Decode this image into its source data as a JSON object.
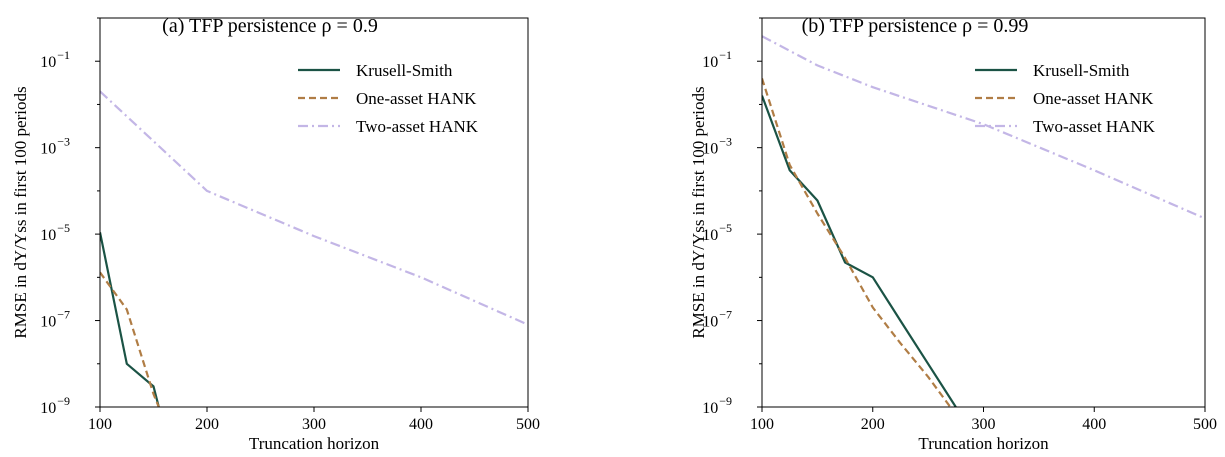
{
  "chart_data": [
    {
      "type": "line",
      "title": "(a) TFP persistence ρ = 0.9",
      "xlabel": "Truncation horizon",
      "ylabel": "RMSE in dY/Yss in first 100 periods",
      "x_ticks": [
        "100",
        "200",
        "300",
        "400",
        "500"
      ],
      "y_ticks": [
        {
          "base": "10",
          "exp": "−1",
          "value": 0.1
        },
        {
          "base": "10",
          "exp": "−3",
          "value": 0.001
        },
        {
          "base": "10",
          "exp": "−5",
          "value": 1e-05
        },
        {
          "base": "10",
          "exp": "−7",
          "value": 1e-07
        },
        {
          "base": "10",
          "exp": "−9",
          "value": 1e-09
        }
      ],
      "xlim": [
        100,
        500
      ],
      "ylim": [
        1e-09,
        1
      ],
      "yscale": "log",
      "grid": false,
      "legend_position": "top-right",
      "series": [
        {
          "name": "Krusell-Smith",
          "color": "#1b5345",
          "dash": "solid",
          "x": [
            100,
            125,
            150,
            155
          ],
          "y": [
            1.1e-05,
            1e-08,
            3e-09,
            1e-09
          ]
        },
        {
          "name": "One-asset HANK",
          "color": "#b07d45",
          "dash": "dashed",
          "x": [
            100,
            125,
            150,
            155
          ],
          "y": [
            1.3e-06,
            1.8e-07,
            2e-09,
            1e-09
          ]
        },
        {
          "name": "Two-asset HANK",
          "color": "#c3b6e6",
          "dash": "dashdot",
          "x": [
            100,
            200,
            300,
            400,
            500
          ],
          "y": [
            0.02,
            0.0001,
            9e-06,
            1e-06,
            8e-08
          ]
        }
      ]
    },
    {
      "type": "line",
      "title": "(b) TFP persistence ρ = 0.99",
      "xlabel": "Truncation horizon",
      "ylabel": "RMSE in dY/Yss in first 100 periods",
      "x_ticks": [
        "100",
        "200",
        "300",
        "400",
        "500"
      ],
      "y_ticks": [
        {
          "base": "10",
          "exp": "−1",
          "value": 0.1
        },
        {
          "base": "10",
          "exp": "−3",
          "value": 0.001
        },
        {
          "base": "10",
          "exp": "−5",
          "value": 1e-05
        },
        {
          "base": "10",
          "exp": "−7",
          "value": 1e-07
        },
        {
          "base": "10",
          "exp": "−9",
          "value": 1e-09
        }
      ],
      "xlim": [
        100,
        500
      ],
      "ylim": [
        1e-09,
        1
      ],
      "yscale": "log",
      "grid": false,
      "legend_position": "top-right",
      "series": [
        {
          "name": "Krusell-Smith",
          "color": "#1b5345",
          "dash": "solid",
          "x": [
            100,
            125,
            150,
            175,
            200,
            225,
            250,
            275
          ],
          "y": [
            0.016,
            0.0003,
            6e-05,
            2.2e-06,
            1e-06,
            1e-07,
            1e-08,
            1e-09
          ]
        },
        {
          "name": "One-asset HANK",
          "color": "#b07d45",
          "dash": "dashed",
          "x": [
            100,
            125,
            150,
            175,
            200,
            225,
            250,
            270
          ],
          "y": [
            0.04,
            0.0004,
            3e-05,
            2.8e-06,
            2e-07,
            3e-08,
            5e-09,
            1e-09
          ]
        },
        {
          "name": "Two-asset HANK",
          "color": "#c3b6e6",
          "dash": "dashdot",
          "x": [
            100,
            150,
            200,
            300,
            400,
            500
          ],
          "y": [
            0.38,
            0.08,
            0.025,
            0.0035,
            0.0003,
            2.3e-05
          ]
        }
      ]
    }
  ]
}
